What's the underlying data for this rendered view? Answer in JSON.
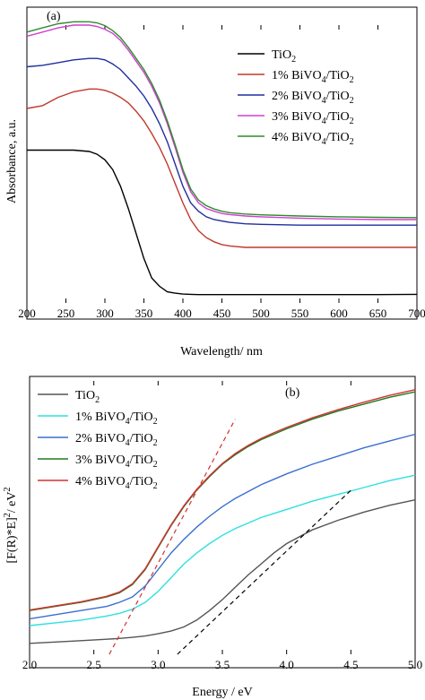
{
  "chart_data": [
    {
      "type": "line",
      "panel_label": "(a)",
      "xlabel": "Wavelength/ nm",
      "ylabel": "Absorbance, a.u.",
      "xlim": [
        200,
        700
      ],
      "ylim": [
        0,
        1.0
      ],
      "y_ticks_labeled": false,
      "x_ticks": [
        200,
        250,
        300,
        350,
        400,
        450,
        500,
        550,
        600,
        650,
        700
      ],
      "x": [
        200,
        220,
        240,
        260,
        280,
        290,
        300,
        310,
        320,
        330,
        340,
        350,
        360,
        370,
        380,
        390,
        400,
        410,
        420,
        430,
        440,
        450,
        460,
        480,
        500,
        550,
        600,
        650,
        700
      ],
      "series": [
        {
          "name": "TiO2",
          "color": "#000000",
          "values": [
            0.55,
            0.55,
            0.55,
            0.55,
            0.545,
            0.535,
            0.515,
            0.48,
            0.42,
            0.34,
            0.25,
            0.16,
            0.09,
            0.06,
            0.04,
            0.035,
            0.032,
            0.031,
            0.03,
            0.03,
            0.03,
            0.03,
            0.03,
            0.03,
            0.03,
            0.03,
            0.03,
            0.03,
            0.031
          ]
        },
        {
          "name": "1% BiVO4/TiO2",
          "color": "#c0392b",
          "values": [
            0.7,
            0.71,
            0.74,
            0.76,
            0.77,
            0.77,
            0.765,
            0.755,
            0.74,
            0.72,
            0.69,
            0.655,
            0.61,
            0.56,
            0.5,
            0.43,
            0.36,
            0.3,
            0.26,
            0.235,
            0.22,
            0.21,
            0.205,
            0.2,
            0.2,
            0.2,
            0.2,
            0.2,
            0.2
          ]
        },
        {
          "name": "2% BiVO4/TiO2",
          "color": "#1f2f9e",
          "values": [
            0.85,
            0.855,
            0.865,
            0.875,
            0.88,
            0.88,
            0.875,
            0.86,
            0.84,
            0.81,
            0.78,
            0.745,
            0.7,
            0.645,
            0.58,
            0.5,
            0.42,
            0.36,
            0.33,
            0.31,
            0.3,
            0.295,
            0.29,
            0.285,
            0.283,
            0.28,
            0.28,
            0.28,
            0.28
          ]
        },
        {
          "name": "3% BiVO4/TiO2",
          "color": "#d13fd1",
          "values": [
            0.96,
            0.975,
            0.99,
            1.0,
            1.0,
            0.995,
            0.985,
            0.97,
            0.945,
            0.91,
            0.87,
            0.83,
            0.78,
            0.72,
            0.645,
            0.56,
            0.47,
            0.4,
            0.36,
            0.34,
            0.33,
            0.322,
            0.318,
            0.313,
            0.31,
            0.305,
            0.302,
            0.3,
            0.3
          ]
        },
        {
          "name": "4% BiVO4/TiO2",
          "color": "#2e8b2e",
          "values": [
            0.975,
            0.99,
            1.005,
            1.012,
            1.012,
            1.008,
            0.998,
            0.98,
            0.955,
            0.92,
            0.88,
            0.84,
            0.79,
            0.73,
            0.655,
            0.57,
            0.48,
            0.41,
            0.37,
            0.35,
            0.338,
            0.33,
            0.325,
            0.32,
            0.317,
            0.313,
            0.31,
            0.308,
            0.307
          ]
        }
      ]
    },
    {
      "type": "line",
      "panel_label": "(b)",
      "xlabel": "Energy / eV",
      "ylabel": "[F(R)*E]²/ eV²",
      "xlim": [
        2.0,
        5.0
      ],
      "ylim": [
        0,
        1.0
      ],
      "y_ticks_labeled": false,
      "x_ticks": [
        "2.0",
        "2.5",
        "3.0",
        "3.5",
        "4.0",
        "4.5",
        "5.0"
      ],
      "x": [
        2.0,
        2.2,
        2.4,
        2.6,
        2.7,
        2.8,
        2.9,
        3.0,
        3.1,
        3.2,
        3.3,
        3.4,
        3.5,
        3.6,
        3.7,
        3.8,
        3.9,
        4.0,
        4.2,
        4.4,
        4.6,
        4.8,
        5.0
      ],
      "series": [
        {
          "name": "TiO2",
          "color": "#555555",
          "values": [
            0.04,
            0.045,
            0.05,
            0.055,
            0.058,
            0.062,
            0.067,
            0.075,
            0.085,
            0.1,
            0.125,
            0.16,
            0.2,
            0.245,
            0.29,
            0.33,
            0.37,
            0.405,
            0.455,
            0.49,
            0.52,
            0.545,
            0.565
          ]
        },
        {
          "name": "1% BiVO4/TiO2",
          "color": "#2ee0e0",
          "values": [
            0.105,
            0.115,
            0.125,
            0.14,
            0.15,
            0.165,
            0.19,
            0.23,
            0.28,
            0.33,
            0.37,
            0.405,
            0.435,
            0.46,
            0.48,
            0.5,
            0.515,
            0.53,
            0.56,
            0.585,
            0.61,
            0.635,
            0.655
          ]
        },
        {
          "name": "2% BiVO4/TiO2",
          "color": "#3a6fd0",
          "values": [
            0.13,
            0.145,
            0.16,
            0.175,
            0.19,
            0.21,
            0.25,
            0.31,
            0.37,
            0.42,
            0.465,
            0.505,
            0.54,
            0.57,
            0.595,
            0.62,
            0.64,
            0.66,
            0.695,
            0.725,
            0.755,
            0.78,
            0.805
          ]
        },
        {
          "name": "3% BiVO4/TiO2",
          "color": "#1f7a1f",
          "values": [
            0.16,
            0.175,
            0.19,
            0.21,
            0.225,
            0.255,
            0.31,
            0.39,
            0.47,
            0.54,
            0.6,
            0.65,
            0.695,
            0.73,
            0.76,
            0.785,
            0.805,
            0.825,
            0.86,
            0.89,
            0.915,
            0.94,
            0.96
          ]
        },
        {
          "name": "4% BiVO4/TiO2",
          "color": "#d23030",
          "values": [
            0.162,
            0.177,
            0.192,
            0.212,
            0.228,
            0.258,
            0.313,
            0.393,
            0.473,
            0.543,
            0.603,
            0.653,
            0.698,
            0.734,
            0.764,
            0.789,
            0.81,
            0.83,
            0.865,
            0.895,
            0.922,
            0.947,
            0.968
          ]
        }
      ],
      "fit_lines": [
        {
          "color": "#000000",
          "style": "dashed",
          "x": [
            3.15,
            4.5
          ],
          "values": [
            0.0,
            0.6
          ]
        },
        {
          "color": "#d23030",
          "style": "dashed",
          "x": [
            2.62,
            3.6
          ],
          "values": [
            0.0,
            0.86
          ]
        }
      ]
    }
  ],
  "legend": {
    "a": [
      {
        "prefix": "TiO",
        "sub": "2",
        "suffix": ""
      },
      {
        "prefix": "1% BiVO",
        "sub": "4",
        "suffix": "/TiO",
        "sub2": "2"
      },
      {
        "prefix": "2% BiVO",
        "sub": "4",
        "suffix": "/TiO",
        "sub2": "2"
      },
      {
        "prefix": "3% BiVO",
        "sub": "4",
        "suffix": "/TiO",
        "sub2": "2"
      },
      {
        "prefix": "4% BiVO",
        "sub": "4",
        "suffix": "/TiO",
        "sub2": "2"
      }
    ],
    "b": [
      {
        "prefix": "TiO",
        "sub": "2",
        "suffix": ""
      },
      {
        "prefix": "1% BiVO",
        "sub": "4",
        "suffix": "/TiO",
        "sub2": "2"
      },
      {
        "prefix": "2% BiVO",
        "sub": "4",
        "suffix": "/TiO",
        "sub2": "2"
      },
      {
        "prefix": "3% BiVO",
        "sub": "4",
        "suffix": "/TiO",
        "sub2": "2"
      },
      {
        "prefix": "4% BiVO",
        "sub": "4",
        "suffix": "/TiO",
        "sub2": "2"
      }
    ]
  },
  "ylabel_b_parts": {
    "main": "[F(R)*E]",
    "sup1": "2",
    "tail": "/ eV",
    "sup2": "2"
  }
}
